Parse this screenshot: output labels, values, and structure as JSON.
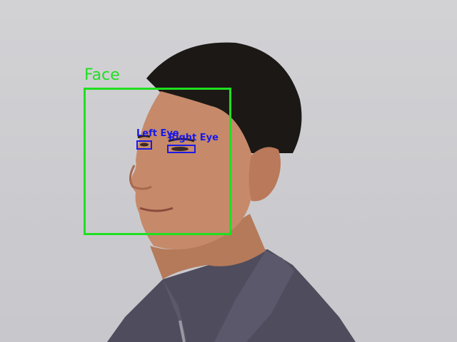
{
  "detections": {
    "face": {
      "label": "Face",
      "color": "#1fe01f"
    },
    "left_eye": {
      "label": "Left Eye",
      "color": "#1a1ae6"
    },
    "right_eye": {
      "label": "Right Eye",
      "color": "#1a1ae6"
    }
  }
}
